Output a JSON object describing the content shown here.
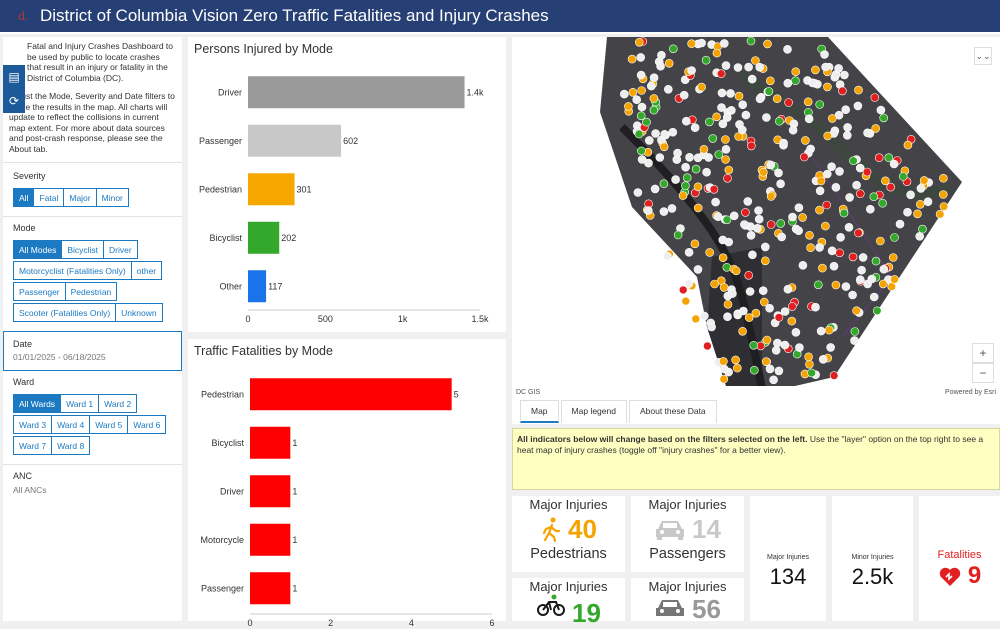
{
  "header": {
    "logo": "d.",
    "title": "District of Columbia Vision Zero Traffic Fatalities and Injury Crashes"
  },
  "sidebar": {
    "intro_1": "Fatal and Injury Crashes Dashboard to be used by public to locate crashes that result in an injury or fatality in the District of Columbia (DC).",
    "intro_2": "Adjust the Mode, Severity and Date filters to refine the results in the map. All charts will update to reflect the collisions in current map extent. For more about data sources and post-crash response, please see the About tab.",
    "severity": {
      "label": "Severity",
      "options": [
        "All",
        "Fatal",
        "Major",
        "Minor"
      ]
    },
    "mode": {
      "label": "Mode",
      "options": [
        "All Modes",
        "Bicyclist",
        "Driver",
        "Motorcyclist (Fatalities Only)",
        "other",
        "Passenger",
        "Pedestrian",
        "Scooter (Fatalities Only)",
        "Unknown"
      ]
    },
    "date": {
      "label": "Date",
      "value": "01/01/2025 - 06/18/2025"
    },
    "ward": {
      "label": "Ward",
      "options": [
        "All Wards",
        "Ward 1",
        "Ward 2",
        "Ward 3",
        "Ward 4",
        "Ward 5",
        "Ward 6",
        "Ward 7",
        "Ward 8"
      ]
    },
    "anc": {
      "label": "ANC",
      "value": "All ANCs"
    }
  },
  "chart_data": [
    {
      "type": "bar",
      "orientation": "horizontal",
      "title": "Persons Injured by Mode",
      "categories": [
        "Driver",
        "Passenger",
        "Pedestrian",
        "Bicyclist",
        "Other"
      ],
      "values": [
        1400,
        602,
        301,
        202,
        117
      ],
      "data_labels": [
        "1.4k",
        "602",
        "301",
        "202",
        "117"
      ],
      "colors": [
        "#999999",
        "#c8c8c8",
        "#f7a800",
        "#33a82b",
        "#1a73e8"
      ],
      "xlim": [
        0,
        1500
      ],
      "xticks": [
        "0",
        "500",
        "1k",
        "1.5k"
      ]
    },
    {
      "type": "bar",
      "orientation": "horizontal",
      "title": "Traffic Fatalities by Mode",
      "categories": [
        "Pedestrian",
        "Bicyclist",
        "Driver",
        "Motorcycle",
        "Passenger"
      ],
      "values": [
        5,
        1,
        1,
        1,
        1
      ],
      "colors": [
        "#ff0000",
        "#ff0000",
        "#ff0000",
        "#ff0000",
        "#ff0000"
      ],
      "xlim": [
        0,
        6
      ],
      "xticks": [
        "0",
        "2",
        "4",
        "6"
      ]
    }
  ],
  "map": {
    "attribution_left": "DC GIS",
    "attribution_right": "Powered by Esri",
    "zoom_in": "+",
    "zoom_out": "−",
    "layers_icon": "chevrons-icon"
  },
  "tabs": [
    "Map",
    "Map legend",
    "About these Data"
  ],
  "note": {
    "bold": "All indicators below will change based on the filters selected on the left.",
    "text": " Use the \"layer\" option on the top right to see a heat map of injury crashes (toggle off \"injury crashes\" for a better view)."
  },
  "indicators": {
    "ped": {
      "title": "Major Injuries",
      "value": "40",
      "subtitle": "Pedestrians",
      "color": "#f5a300"
    },
    "pass": {
      "title": "Major Injuries",
      "value": "14",
      "subtitle": "Passengers",
      "color": "#c8c8c8"
    },
    "bike": {
      "title": "Major Injuries",
      "value": "19",
      "color": "#33a82b"
    },
    "driver": {
      "title": "Major Injuries",
      "value": "56",
      "color": "#999999"
    },
    "major": {
      "title": "Major Injuries",
      "value": "134"
    },
    "minor": {
      "title": "Minor Injuries",
      "value": "2.5k"
    },
    "fatal": {
      "title": "Fatalities",
      "value": "9",
      "color": "#e02020"
    }
  }
}
